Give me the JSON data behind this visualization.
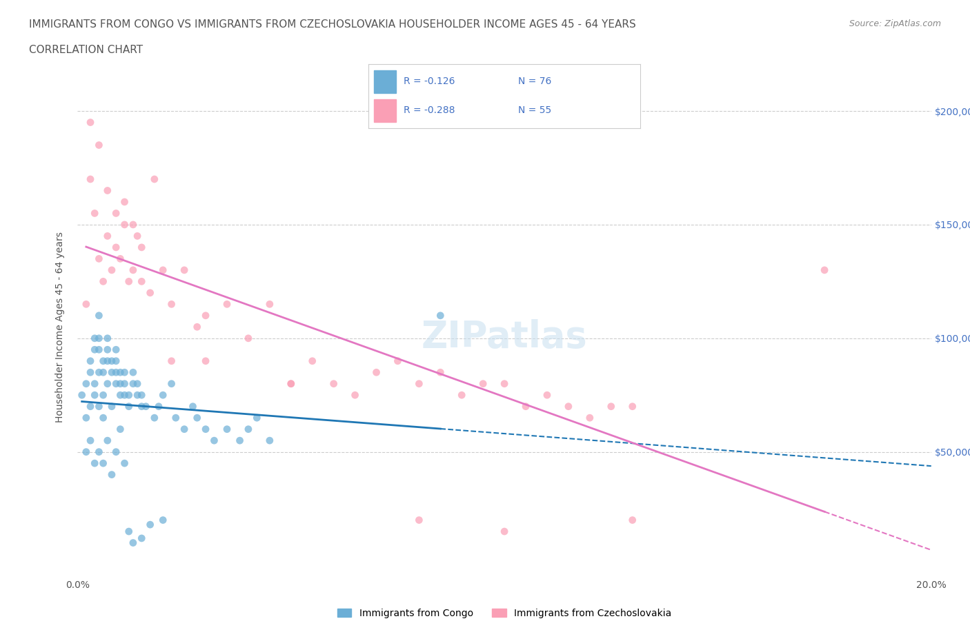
{
  "title_line1": "IMMIGRANTS FROM CONGO VS IMMIGRANTS FROM CZECHOSLOVAKIA HOUSEHOLDER INCOME AGES 45 - 64 YEARS",
  "title_line2": "CORRELATION CHART",
  "source_text": "Source: ZipAtlas.com",
  "xlabel": "",
  "ylabel": "Householder Income Ages 45 - 64 years",
  "xlim": [
    0.0,
    0.2
  ],
  "ylim": [
    -5000,
    215000
  ],
  "xticks": [
    0.0,
    0.05,
    0.1,
    0.15,
    0.2
  ],
  "xtick_labels": [
    "0.0%",
    "",
    "",
    "",
    "20.0%"
  ],
  "yticks": [
    0,
    50000,
    100000,
    150000,
    200000
  ],
  "ytick_labels": [
    "",
    "$50,000",
    "$100,000",
    "$150,000",
    "$200,000"
  ],
  "watermark": "ZIPatlas",
  "legend_r_congo": "R = -0.126",
  "legend_n_congo": "N = 76",
  "legend_r_czech": "R = -0.288",
  "legend_n_czech": "N = 55",
  "legend_label_congo": "Immigrants from Congo",
  "legend_label_czech": "Immigrants from Czechoslovakia",
  "color_congo": "#6baed6",
  "color_czech": "#fa9fb5",
  "color_title": "#555555",
  "color_axis_label": "#555555",
  "color_tick_label_right": "#4472c4",
  "color_legend_r": "#4472c4",
  "color_legend_n": "#4472c4",
  "congo_x": [
    0.001,
    0.002,
    0.002,
    0.003,
    0.003,
    0.003,
    0.004,
    0.004,
    0.004,
    0.004,
    0.005,
    0.005,
    0.005,
    0.005,
    0.005,
    0.006,
    0.006,
    0.006,
    0.006,
    0.007,
    0.007,
    0.007,
    0.007,
    0.008,
    0.008,
    0.008,
    0.009,
    0.009,
    0.009,
    0.009,
    0.01,
    0.01,
    0.01,
    0.011,
    0.011,
    0.011,
    0.012,
    0.012,
    0.013,
    0.013,
    0.014,
    0.014,
    0.015,
    0.015,
    0.016,
    0.018,
    0.019,
    0.02,
    0.022,
    0.023,
    0.025,
    0.027,
    0.028,
    0.03,
    0.032,
    0.035,
    0.038,
    0.04,
    0.042,
    0.045,
    0.002,
    0.003,
    0.004,
    0.005,
    0.006,
    0.007,
    0.008,
    0.009,
    0.01,
    0.011,
    0.012,
    0.013,
    0.015,
    0.017,
    0.02,
    0.085
  ],
  "congo_y": [
    75000,
    65000,
    80000,
    70000,
    85000,
    90000,
    75000,
    80000,
    95000,
    100000,
    70000,
    85000,
    95000,
    100000,
    110000,
    65000,
    75000,
    85000,
    90000,
    80000,
    90000,
    95000,
    100000,
    70000,
    85000,
    90000,
    80000,
    85000,
    90000,
    95000,
    75000,
    80000,
    85000,
    75000,
    80000,
    85000,
    70000,
    75000,
    80000,
    85000,
    75000,
    80000,
    70000,
    75000,
    70000,
    65000,
    70000,
    75000,
    80000,
    65000,
    60000,
    70000,
    65000,
    60000,
    55000,
    60000,
    55000,
    60000,
    65000,
    55000,
    50000,
    55000,
    45000,
    50000,
    45000,
    55000,
    40000,
    50000,
    60000,
    45000,
    15000,
    10000,
    12000,
    18000,
    20000,
    110000
  ],
  "czech_x": [
    0.002,
    0.003,
    0.004,
    0.005,
    0.006,
    0.007,
    0.008,
    0.009,
    0.01,
    0.011,
    0.012,
    0.013,
    0.014,
    0.015,
    0.017,
    0.02,
    0.022,
    0.025,
    0.028,
    0.03,
    0.035,
    0.04,
    0.045,
    0.05,
    0.055,
    0.06,
    0.065,
    0.07,
    0.075,
    0.08,
    0.085,
    0.09,
    0.095,
    0.1,
    0.105,
    0.11,
    0.115,
    0.12,
    0.125,
    0.13,
    0.003,
    0.005,
    0.007,
    0.009,
    0.011,
    0.013,
    0.015,
    0.018,
    0.022,
    0.03,
    0.05,
    0.08,
    0.1,
    0.13,
    0.175
  ],
  "czech_y": [
    115000,
    170000,
    155000,
    135000,
    125000,
    145000,
    130000,
    140000,
    135000,
    150000,
    125000,
    130000,
    145000,
    140000,
    120000,
    130000,
    115000,
    130000,
    105000,
    110000,
    115000,
    100000,
    115000,
    80000,
    90000,
    80000,
    75000,
    85000,
    90000,
    80000,
    85000,
    75000,
    80000,
    80000,
    70000,
    75000,
    70000,
    65000,
    70000,
    70000,
    195000,
    185000,
    165000,
    155000,
    160000,
    150000,
    125000,
    170000,
    90000,
    90000,
    80000,
    20000,
    15000,
    20000,
    130000
  ]
}
